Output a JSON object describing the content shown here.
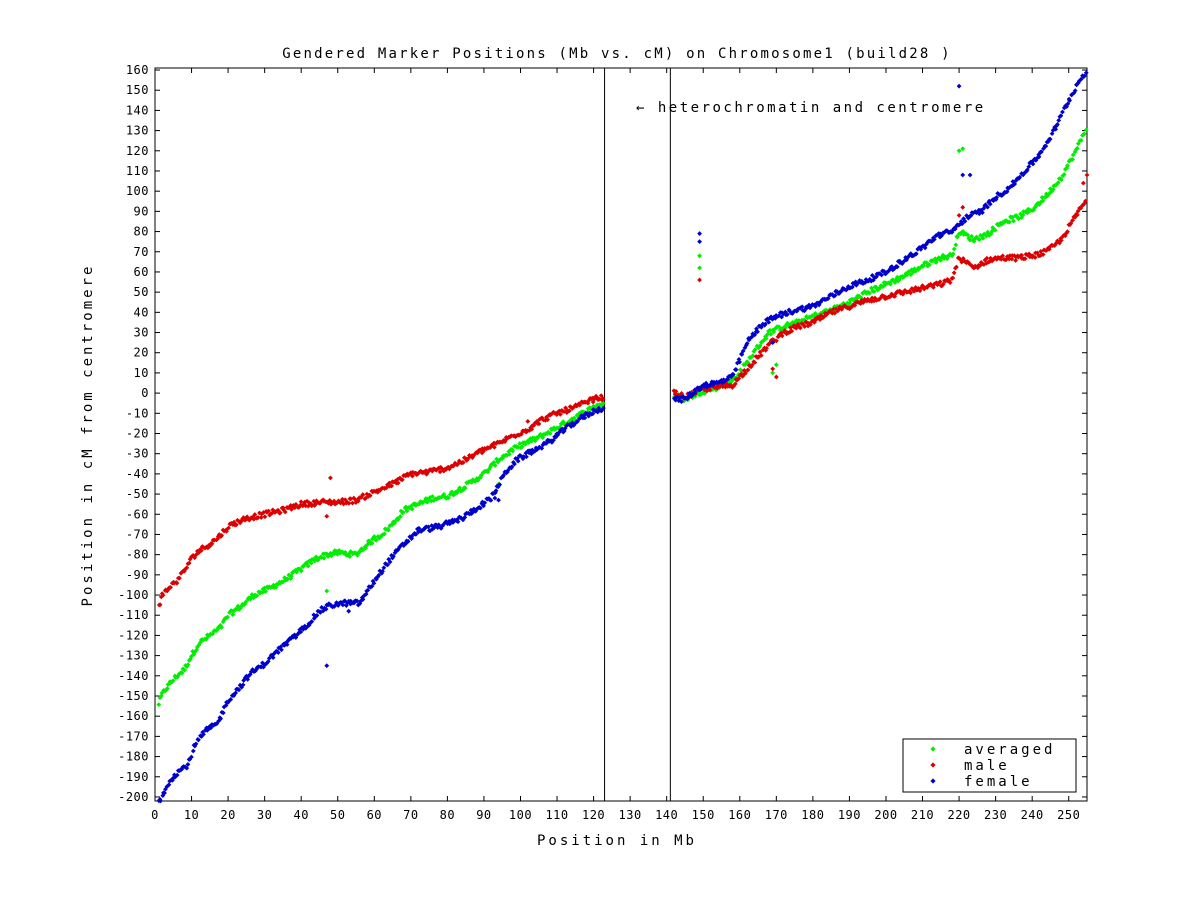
{
  "chart_data": {
    "type": "scatter",
    "title": "Gendered Marker Positions (Mb vs. cM) on Chromosome1 (build28 )",
    "xlabel": "Position in Mb",
    "ylabel": "Position in cM from centromere",
    "xlim": [
      0,
      255
    ],
    "ylim": [
      -202,
      161
    ],
    "xticks": [
      0,
      10,
      20,
      30,
      40,
      50,
      60,
      70,
      80,
      90,
      100,
      110,
      120,
      130,
      140,
      150,
      160,
      170,
      180,
      190,
      200,
      210,
      220,
      230,
      240,
      250
    ],
    "yticks": [
      160,
      150,
      140,
      130,
      120,
      110,
      100,
      90,
      80,
      70,
      60,
      50,
      40,
      30,
      20,
      10,
      0,
      -10,
      -20,
      -30,
      -40,
      -50,
      -60,
      -70,
      -80,
      -90,
      -100,
      -110,
      -120,
      -130,
      -140,
      -150,
      -160,
      -170,
      -180,
      -190,
      -200
    ],
    "grid": false,
    "legend_position": "bottom-right",
    "annotation": {
      "text": "← heterochromatin and centromere"
    },
    "centromere_lines": [
      123,
      141
    ],
    "colors": {
      "averaged": "#00ee00",
      "male": "#dd0000",
      "female": "#0000cc"
    },
    "series": [
      {
        "name": "averaged",
        "color": "#00ee00",
        "anchors": [
          [
            1,
            -154
          ],
          [
            2,
            -149
          ],
          [
            4,
            -144
          ],
          [
            6,
            -140
          ],
          [
            8,
            -137
          ],
          [
            10,
            -130
          ],
          [
            12,
            -124
          ],
          [
            15,
            -120
          ],
          [
            18,
            -116
          ],
          [
            20,
            -110
          ],
          [
            24,
            -105
          ],
          [
            27,
            -100
          ],
          [
            31,
            -97
          ],
          [
            36,
            -92
          ],
          [
            40,
            -87
          ],
          [
            44,
            -82
          ],
          [
            47,
            -80
          ],
          [
            50,
            -79
          ],
          [
            55,
            -80
          ],
          [
            58,
            -75
          ],
          [
            62,
            -70
          ],
          [
            65,
            -65
          ],
          [
            68,
            -58
          ],
          [
            72,
            -55
          ],
          [
            76,
            -52
          ],
          [
            80,
            -51
          ],
          [
            85,
            -46
          ],
          [
            90,
            -40
          ],
          [
            94,
            -33
          ],
          [
            98,
            -28
          ],
          [
            101,
            -25
          ],
          [
            105,
            -22
          ],
          [
            110,
            -17
          ],
          [
            115,
            -12
          ],
          [
            120,
            -7
          ],
          [
            123,
            -5
          ],
          [
            142,
            -1
          ],
          [
            145,
            -3
          ],
          [
            150,
            1
          ],
          [
            154,
            3
          ],
          [
            158,
            6
          ],
          [
            162,
            15
          ],
          [
            165,
            23
          ],
          [
            168,
            30
          ],
          [
            172,
            33
          ],
          [
            176,
            35
          ],
          [
            180,
            38
          ],
          [
            185,
            41
          ],
          [
            190,
            45
          ],
          [
            195,
            50
          ],
          [
            200,
            54
          ],
          [
            205,
            58
          ],
          [
            210,
            63
          ],
          [
            215,
            67
          ],
          [
            218,
            68
          ],
          [
            220,
            80
          ],
          [
            224,
            76
          ],
          [
            228,
            79
          ],
          [
            232,
            85
          ],
          [
            236,
            87
          ],
          [
            240,
            91
          ],
          [
            244,
            98
          ],
          [
            248,
            107
          ],
          [
            252,
            120
          ],
          [
            255,
            132
          ]
        ],
        "outliers": [
          [
            47,
            -98
          ],
          [
            149,
            68
          ],
          [
            149,
            62
          ],
          [
            220,
            120
          ],
          [
            221,
            121
          ],
          [
            169,
            10
          ],
          [
            170,
            14
          ],
          [
            94,
            -45
          ],
          [
            60,
            -71
          ]
        ]
      },
      {
        "name": "male",
        "color": "#dd0000",
        "anchors": [
          [
            1,
            -106
          ],
          [
            2,
            -100
          ],
          [
            4,
            -96
          ],
          [
            6,
            -93
          ],
          [
            8,
            -88
          ],
          [
            10,
            -82
          ],
          [
            12,
            -78
          ],
          [
            14,
            -76
          ],
          [
            17,
            -72
          ],
          [
            19,
            -68
          ],
          [
            21,
            -65
          ],
          [
            25,
            -62
          ],
          [
            30,
            -60
          ],
          [
            35,
            -58
          ],
          [
            40,
            -55
          ],
          [
            46,
            -54
          ],
          [
            50,
            -54
          ],
          [
            55,
            -53
          ],
          [
            60,
            -49
          ],
          [
            65,
            -45
          ],
          [
            70,
            -40
          ],
          [
            75,
            -39
          ],
          [
            80,
            -37
          ],
          [
            85,
            -33
          ],
          [
            90,
            -28
          ],
          [
            94,
            -25
          ],
          [
            98,
            -21
          ],
          [
            102,
            -18
          ],
          [
            106,
            -13
          ],
          [
            110,
            -10
          ],
          [
            115,
            -7
          ],
          [
            120,
            -3
          ],
          [
            123,
            -2
          ],
          [
            142,
            0
          ],
          [
            145,
            -2
          ],
          [
            150,
            2
          ],
          [
            154,
            3
          ],
          [
            158,
            4
          ],
          [
            162,
            12
          ],
          [
            165,
            18
          ],
          [
            168,
            24
          ],
          [
            172,
            30
          ],
          [
            176,
            33
          ],
          [
            180,
            35
          ],
          [
            185,
            40
          ],
          [
            190,
            43
          ],
          [
            195,
            46
          ],
          [
            200,
            48
          ],
          [
            205,
            50
          ],
          [
            210,
            52
          ],
          [
            215,
            54
          ],
          [
            218,
            56
          ],
          [
            220,
            67
          ],
          [
            224,
            62
          ],
          [
            228,
            66
          ],
          [
            232,
            67
          ],
          [
            236,
            67
          ],
          [
            240,
            68
          ],
          [
            244,
            70
          ],
          [
            248,
            76
          ],
          [
            252,
            88
          ],
          [
            255,
            96
          ]
        ],
        "outliers": [
          [
            48,
            -42
          ],
          [
            47,
            -61
          ],
          [
            149,
            56
          ],
          [
            220,
            88
          ],
          [
            221,
            92
          ],
          [
            254,
            104
          ],
          [
            255,
            108
          ],
          [
            170,
            8
          ],
          [
            169,
            12
          ],
          [
            102,
            -14
          ]
        ]
      },
      {
        "name": "female",
        "color": "#0000cc",
        "anchors": [
          [
            1,
            -203
          ],
          [
            2,
            -199
          ],
          [
            4,
            -192
          ],
          [
            6,
            -188
          ],
          [
            9,
            -184
          ],
          [
            11,
            -174
          ],
          [
            14,
            -167
          ],
          [
            17,
            -164
          ],
          [
            20,
            -152
          ],
          [
            23,
            -146
          ],
          [
            26,
            -139
          ],
          [
            30,
            -134
          ],
          [
            34,
            -127
          ],
          [
            38,
            -121
          ],
          [
            42,
            -114
          ],
          [
            45,
            -108
          ],
          [
            48,
            -105
          ],
          [
            52,
            -104
          ],
          [
            56,
            -104
          ],
          [
            60,
            -93
          ],
          [
            64,
            -83
          ],
          [
            68,
            -75
          ],
          [
            72,
            -68
          ],
          [
            78,
            -66
          ],
          [
            84,
            -62
          ],
          [
            88,
            -57
          ],
          [
            92,
            -52
          ],
          [
            96,
            -39
          ],
          [
            99,
            -33
          ],
          [
            103,
            -29
          ],
          [
            108,
            -24
          ],
          [
            112,
            -18
          ],
          [
            116,
            -13
          ],
          [
            120,
            -9
          ],
          [
            123,
            -7
          ],
          [
            142,
            -3
          ],
          [
            145,
            -3
          ],
          [
            150,
            4
          ],
          [
            154,
            5
          ],
          [
            158,
            8
          ],
          [
            162,
            25
          ],
          [
            166,
            34
          ],
          [
            170,
            38
          ],
          [
            175,
            41
          ],
          [
            180,
            43
          ],
          [
            185,
            48
          ],
          [
            190,
            53
          ],
          [
            195,
            56
          ],
          [
            200,
            60
          ],
          [
            205,
            66
          ],
          [
            210,
            72
          ],
          [
            214,
            78
          ],
          [
            218,
            80
          ],
          [
            222,
            87
          ],
          [
            226,
            90
          ],
          [
            230,
            97
          ],
          [
            234,
            102
          ],
          [
            238,
            110
          ],
          [
            242,
            118
          ],
          [
            246,
            130
          ],
          [
            250,
            145
          ],
          [
            253,
            155
          ],
          [
            255,
            160
          ]
        ],
        "outliers": [
          [
            47,
            -135
          ],
          [
            149,
            79
          ],
          [
            149,
            75
          ],
          [
            220,
            152
          ],
          [
            221,
            108
          ],
          [
            223,
            108
          ],
          [
            93,
            -52
          ],
          [
            94,
            -53
          ],
          [
            53,
            -108
          ],
          [
            169,
            25
          ]
        ]
      }
    ]
  }
}
